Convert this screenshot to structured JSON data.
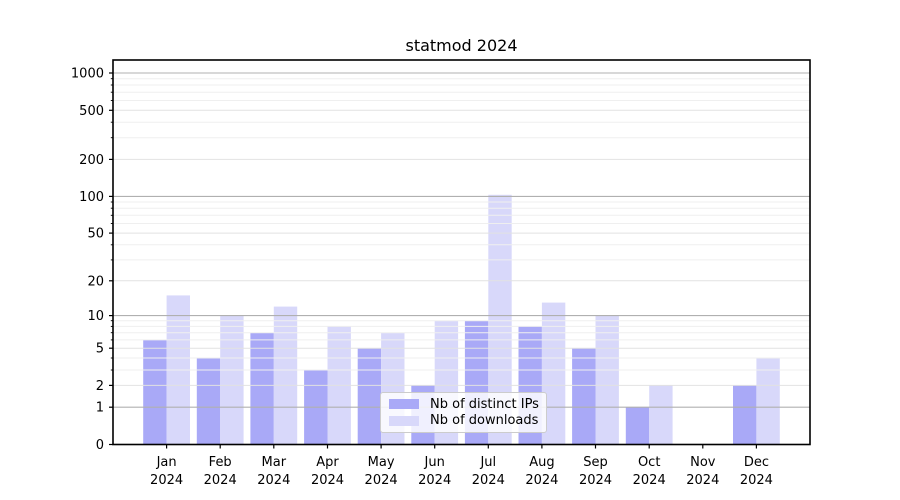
{
  "chart_data": {
    "type": "bar",
    "title": "statmod 2024",
    "categories": [
      "Jan",
      "Feb",
      "Mar",
      "Apr",
      "May",
      "Jun",
      "Jul",
      "Aug",
      "Sep",
      "Oct",
      "Nov",
      "Dec"
    ],
    "category_year": "2024",
    "series": [
      {
        "name": "Nb of distinct IPs",
        "color": "#a9a9f7",
        "values": [
          6,
          4,
          7,
          3,
          5,
          2,
          9,
          8,
          5,
          1,
          0,
          2
        ]
      },
      {
        "name": "Nb of downloads",
        "color": "#d8d8fa",
        "values": [
          15,
          10,
          12,
          8,
          7,
          9,
          103,
          13,
          10,
          2,
          0,
          4
        ]
      }
    ],
    "xlabel": "",
    "ylabel": "",
    "y_scale": "log1p",
    "ylim": [
      0,
      1280
    ],
    "y_ticks_labeled": [
      0,
      1,
      2,
      5,
      10,
      20,
      50,
      100,
      200,
      500,
      1000
    ],
    "y_ticks_major": [
      1,
      10,
      100,
      1000
    ],
    "y_ticks_minor_labeled": [
      2,
      5,
      20,
      50,
      200,
      500
    ],
    "grid": "both",
    "legend_position": "lower-center-inside",
    "colors": {
      "axis": "#000000",
      "grid_major": "#b0b0b0",
      "grid_minor": "#e2e2e2",
      "grid_micro": "#efefef",
      "text": "#000000",
      "background": "#ffffff"
    }
  }
}
